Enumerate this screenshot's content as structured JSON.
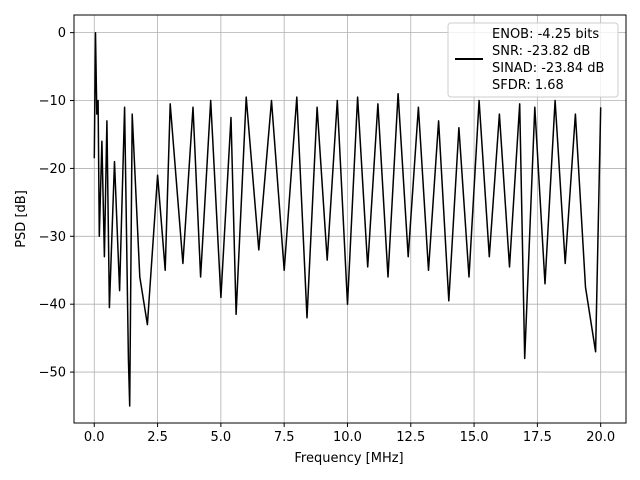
{
  "chart_data": {
    "type": "line",
    "xlabel": "Frequency [MHz]",
    "ylabel": "PSD [dB]",
    "xlim": [
      -0.8,
      21.0
    ],
    "ylim": [
      -57.5,
      2.6
    ],
    "xticks": [
      0.0,
      2.5,
      5.0,
      7.5,
      10.0,
      12.5,
      15.0,
      17.5,
      20.0
    ],
    "xtick_labels": [
      "0.0",
      "2.5",
      "5.0",
      "7.5",
      "10.0",
      "12.5",
      "15.0",
      "17.5",
      "20.0"
    ],
    "yticks": [
      0,
      -10,
      -20,
      -30,
      -40,
      -50
    ],
    "ytick_labels": [
      "0",
      "−10",
      "−20",
      "−30",
      "−40",
      "−50"
    ],
    "grid": true,
    "legend_position": "upper-right",
    "series_color": "#000000",
    "legend": {
      "lines": [
        "ENOB: -4.25 bits",
        "SNR: -23.82 dB",
        "SINAD: -23.84 dB",
        "SFDR: 1.68"
      ]
    },
    "series": [
      {
        "x": [
          0.0,
          0.05,
          0.1,
          0.15,
          0.2,
          0.3,
          0.4,
          0.5,
          0.6,
          0.8,
          1.0,
          1.2,
          1.35,
          1.4,
          1.5,
          1.8,
          2.1,
          2.5,
          2.8,
          3.0,
          3.5,
          3.9,
          4.2,
          4.6,
          5.0,
          5.4,
          5.6,
          6.0,
          6.5,
          7.0,
          7.5,
          8.0,
          8.4,
          8.8,
          9.2,
          9.6,
          10.0,
          10.4,
          10.8,
          11.2,
          11.6,
          12.0,
          12.4,
          12.8,
          13.2,
          13.6,
          14.0,
          14.4,
          14.8,
          15.2,
          15.6,
          16.0,
          16.4,
          16.8,
          17.0,
          17.4,
          17.8,
          18.2,
          18.6,
          19.0,
          19.4,
          19.8,
          20.0
        ],
        "y": [
          -18.5,
          0.0,
          -12.0,
          -10.0,
          -30.0,
          -16.0,
          -33.0,
          -13.0,
          -40.5,
          -19.0,
          -38.0,
          -11.0,
          -48.0,
          -55.0,
          -12.0,
          -36.0,
          -43.0,
          -21.0,
          -35.0,
          -10.5,
          -34.0,
          -11.0,
          -36.0,
          -10.0,
          -39.0,
          -12.5,
          -41.5,
          -9.5,
          -32.0,
          -10.0,
          -35.0,
          -9.5,
          -42.0,
          -11.0,
          -33.5,
          -10.0,
          -40.0,
          -9.5,
          -34.5,
          -10.5,
          -36.0,
          -9.0,
          -33.0,
          -11.0,
          -35.0,
          -13.0,
          -39.5,
          -14.0,
          -36.0,
          -10.0,
          -33.0,
          -12.0,
          -34.5,
          -10.5,
          -48.0,
          -11.0,
          -37.0,
          -10.0,
          -34.0,
          -12.0,
          -37.5,
          -47.0,
          -11.0
        ]
      }
    ]
  }
}
